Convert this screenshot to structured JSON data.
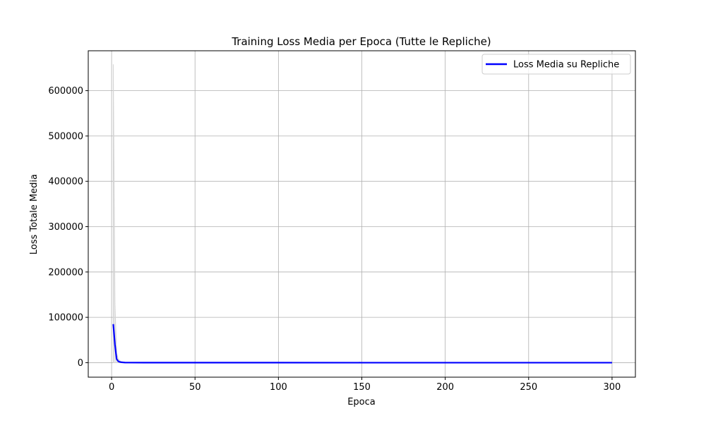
{
  "chart_data": {
    "type": "line",
    "title": "Training Loss Media per Epoca (Tutte le Repliche)",
    "xlabel": "Epoca",
    "ylabel": "Loss Totale Media",
    "xlim": [
      -14,
      314
    ],
    "ylim": [
      -32000,
      688000
    ],
    "xticks": [
      0,
      50,
      100,
      150,
      200,
      250,
      300
    ],
    "yticks": [
      0,
      100000,
      200000,
      300000,
      400000,
      500000,
      600000
    ],
    "xtick_labels": [
      "0",
      "50",
      "100",
      "150",
      "200",
      "250",
      "300"
    ],
    "ytick_labels": [
      "0",
      "100000",
      "200000",
      "300000",
      "400000",
      "500000",
      "600000"
    ],
    "grid": true,
    "legend_position": "top-right",
    "series": [
      {
        "name": "Loss Media su Repliche",
        "color": "#0000ff",
        "x": [
          1,
          2,
          3,
          4,
          5,
          6,
          8,
          10,
          20,
          50,
          100,
          150,
          200,
          250,
          300
        ],
        "y": [
          85000,
          40000,
          8000,
          3000,
          1500,
          800,
          300,
          150,
          60,
          30,
          20,
          15,
          12,
          10,
          8
        ]
      }
    ],
    "replica_band": {
      "color": "#d3d3d3",
      "x": [
        1,
        2,
        3,
        4,
        5,
        6,
        8,
        10
      ],
      "y_max": [
        658000,
        130000,
        20000,
        8000,
        4000,
        2000,
        800,
        400
      ],
      "y_min": [
        0,
        0,
        0,
        0,
        0,
        0,
        0,
        0
      ]
    }
  }
}
